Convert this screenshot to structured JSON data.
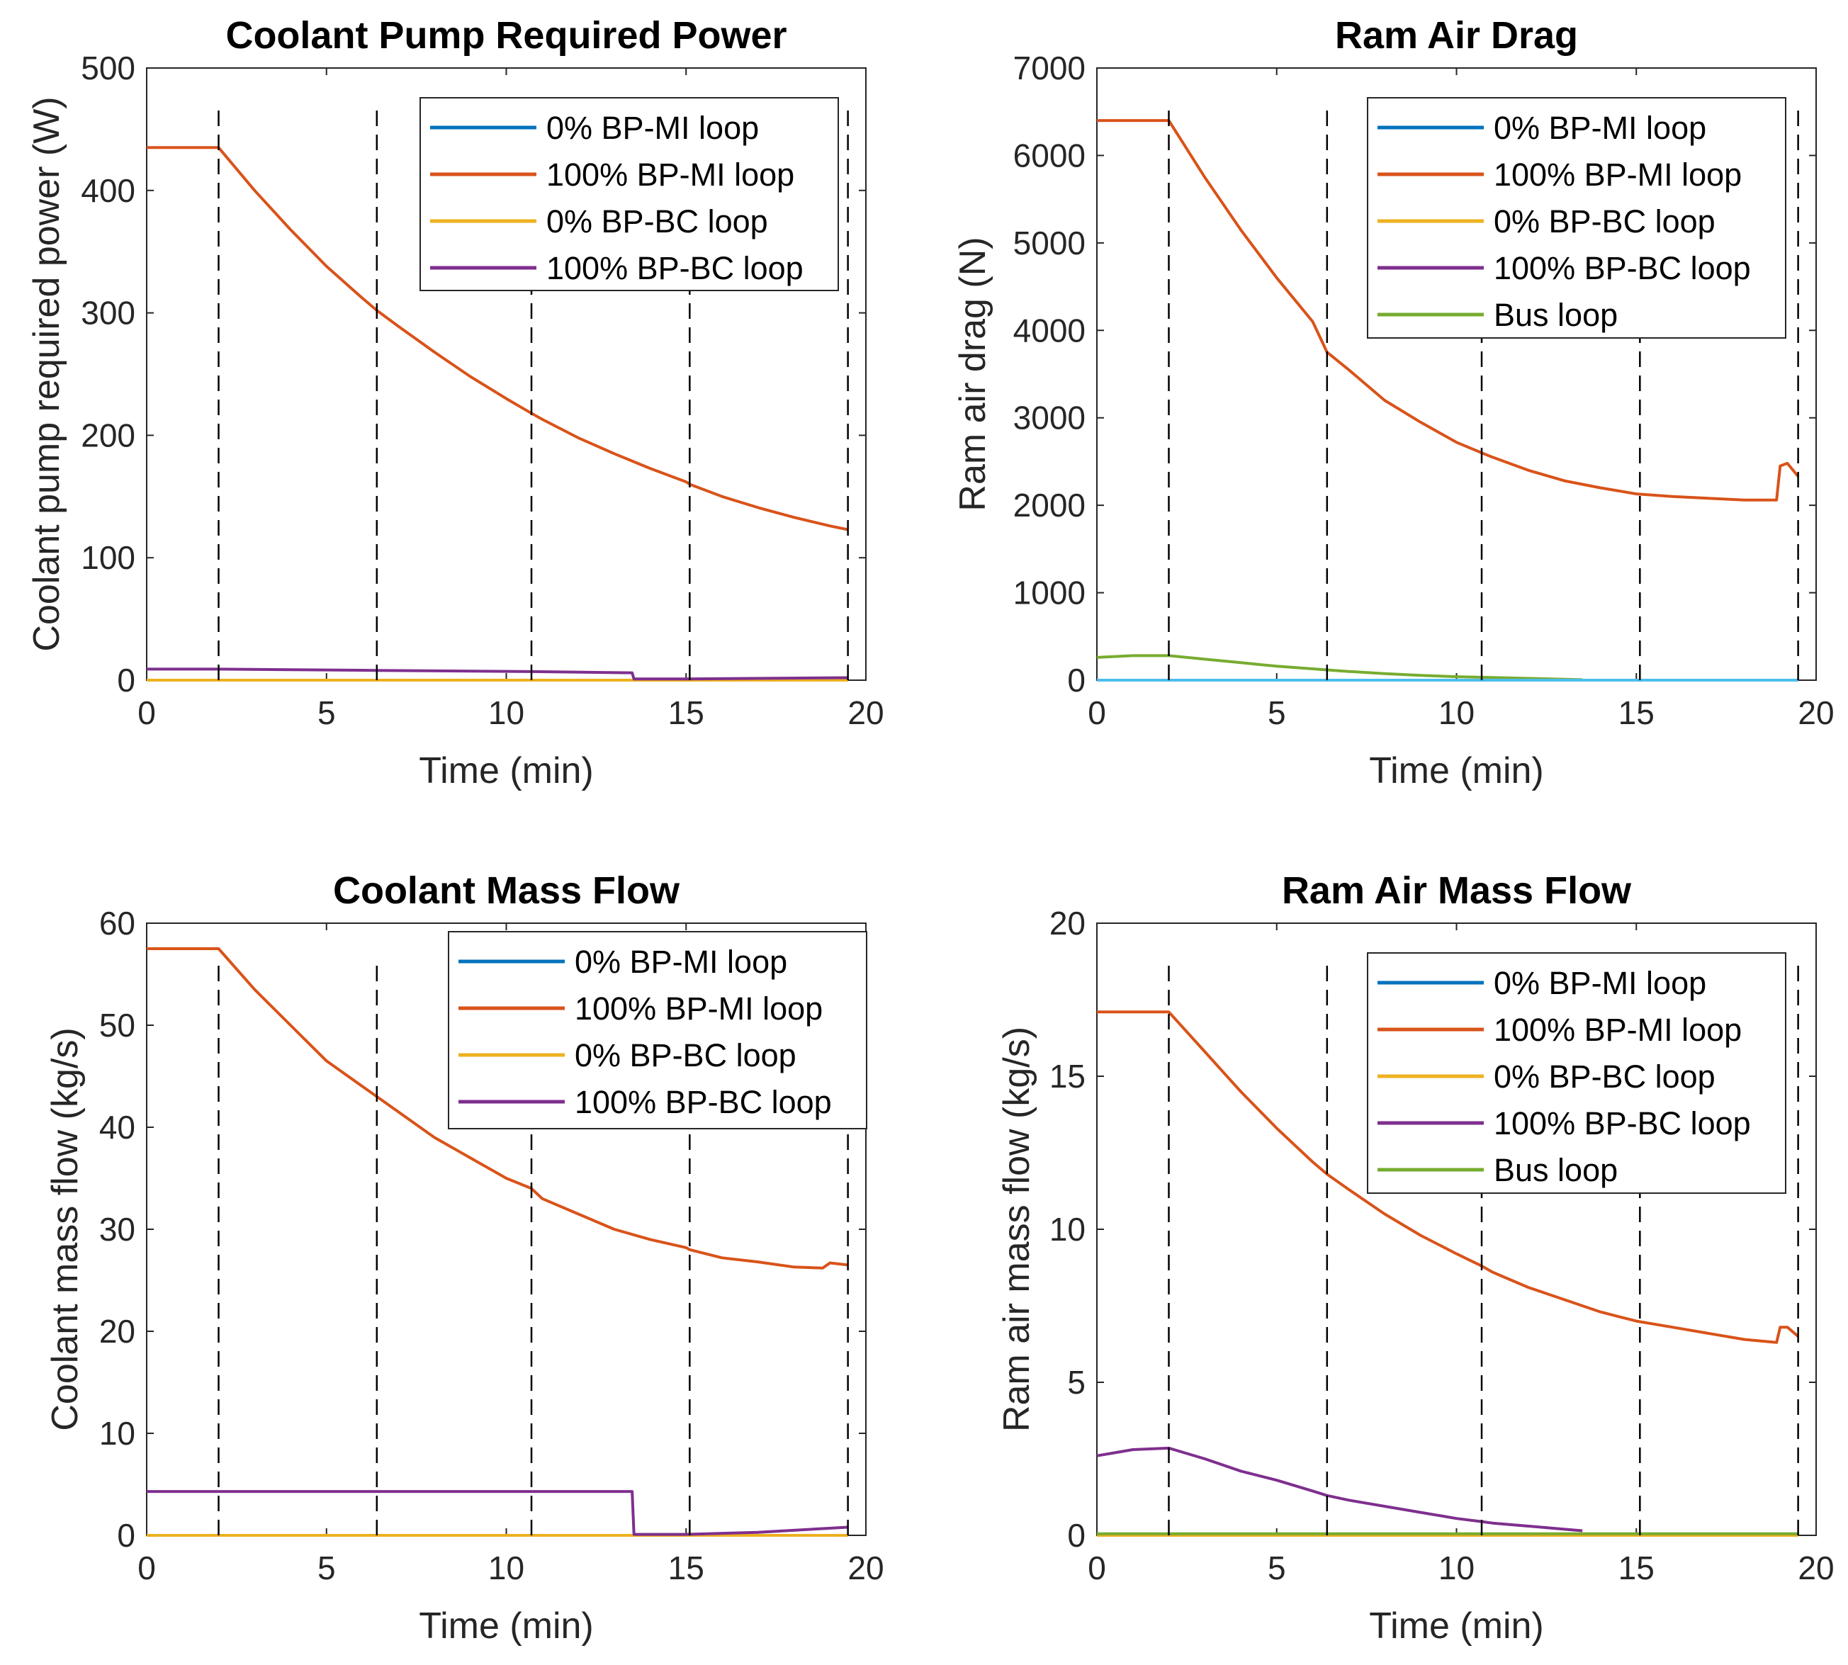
{
  "chart_data": [
    {
      "type": "line",
      "title": "Coolant Pump Required Power",
      "xlabel": "Time (min)",
      "ylabel": "Coolant pump required power (W)",
      "xlim": [
        0,
        20
      ],
      "ylim": [
        0,
        500
      ],
      "xticks": [
        0,
        5,
        10,
        15,
        20
      ],
      "yticks": [
        0,
        100,
        200,
        300,
        400,
        500
      ],
      "vlines": [
        2,
        6.4,
        10.7,
        15.1,
        19.5
      ],
      "legend_position": "top-right",
      "series": [
        {
          "name": "0% BP-MI loop",
          "color": "#0072BD",
          "in_legend": true,
          "x": [
            0,
            19.5
          ],
          "y": [
            0,
            0
          ]
        },
        {
          "name": "100% BP-MI loop",
          "color": "#D95319",
          "in_legend": true,
          "x": [
            0,
            2,
            3,
            4,
            5,
            6,
            6.4,
            7,
            8,
            9,
            10,
            10.7,
            11,
            12,
            13,
            14,
            15,
            15.1,
            16,
            17,
            18,
            19,
            19.5
          ],
          "y": [
            435,
            435,
            400,
            368,
            338,
            312,
            302,
            289,
            268,
            248,
            230,
            218,
            213,
            198,
            185,
            173,
            162,
            160,
            150,
            141,
            133,
            126,
            123
          ]
        },
        {
          "name": "0% BP-BC loop",
          "color": "#EDB120",
          "in_legend": true,
          "x": [
            0,
            19.5
          ],
          "y": [
            0,
            0
          ]
        },
        {
          "name": "100% BP-BC loop",
          "color": "#7E2F8E",
          "in_legend": true,
          "x": [
            0,
            2,
            6.4,
            10.7,
            13.5,
            13.55,
            15,
            19.5
          ],
          "y": [
            9,
            9,
            8,
            7,
            6,
            1,
            1,
            2
          ]
        }
      ]
    },
    {
      "type": "line",
      "title": "Ram Air Drag",
      "xlabel": "Time (min)",
      "ylabel": "Ram air drag (N)",
      "xlim": [
        0,
        20
      ],
      "ylim": [
        0,
        7000
      ],
      "xticks": [
        0,
        5,
        10,
        15,
        20
      ],
      "yticks": [
        0,
        1000,
        2000,
        3000,
        4000,
        5000,
        6000,
        7000
      ],
      "vlines": [
        2,
        6.4,
        10.7,
        15.1,
        19.5
      ],
      "legend_position": "top-right",
      "series": [
        {
          "name": "0% BP-MI loop",
          "color": "#0072BD",
          "in_legend": true,
          "x": [
            0,
            19.5
          ],
          "y": [
            0,
            0
          ]
        },
        {
          "name": "100% BP-MI loop",
          "color": "#D95319",
          "in_legend": true,
          "x": [
            0,
            2,
            3,
            4,
            5,
            6,
            6.4,
            7,
            8,
            9,
            10,
            10.7,
            11,
            12,
            13,
            14,
            15,
            16,
            17,
            18,
            18.9,
            19.0,
            19.2,
            19.5
          ],
          "y": [
            6400,
            6400,
            5750,
            5150,
            4600,
            4100,
            3750,
            3550,
            3200,
            2950,
            2720,
            2600,
            2550,
            2400,
            2280,
            2200,
            2130,
            2100,
            2080,
            2060,
            2060,
            2450,
            2480,
            2330
          ]
        },
        {
          "name": "0% BP-BC loop",
          "color": "#EDB120",
          "in_legend": true,
          "x": [
            0,
            19.5
          ],
          "y": [
            0,
            0
          ]
        },
        {
          "name": "100% BP-BC loop",
          "color": "#7E2F8E",
          "in_legend": true,
          "x": [
            0,
            19.5
          ],
          "y": [
            0,
            0
          ]
        },
        {
          "name": "Bus loop",
          "color": "#77AC30",
          "in_legend": true,
          "x": [
            0,
            1,
            2,
            3,
            4,
            5,
            6,
            7,
            8,
            9,
            10,
            11,
            12,
            13,
            13.5
          ],
          "y": [
            260,
            280,
            280,
            240,
            200,
            160,
            130,
            100,
            75,
            55,
            40,
            30,
            20,
            10,
            5
          ]
        },
        {
          "name": "",
          "color": "#4DBEEE",
          "in_legend": false,
          "x": [
            0,
            19.5
          ],
          "y": [
            0,
            0
          ]
        }
      ]
    },
    {
      "type": "line",
      "title": "Coolant Mass Flow",
      "xlabel": "Time (min)",
      "ylabel": "Coolant mass flow (kg/s)",
      "xlim": [
        0,
        20
      ],
      "ylim": [
        0,
        60
      ],
      "xticks": [
        0,
        5,
        10,
        15,
        20
      ],
      "yticks": [
        0,
        10,
        20,
        30,
        40,
        50,
        60
      ],
      "vlines": [
        2,
        6.4,
        10.7,
        15.1,
        19.5
      ],
      "legend_position": "top-right",
      "series": [
        {
          "name": "0% BP-MI loop",
          "color": "#0072BD",
          "in_legend": true,
          "x": [
            0,
            19.5
          ],
          "y": [
            0,
            0
          ]
        },
        {
          "name": "100% BP-MI loop",
          "color": "#D95319",
          "in_legend": true,
          "x": [
            0,
            2,
            3,
            4,
            5,
            6,
            6.4,
            7,
            8,
            9,
            10,
            10.7,
            11,
            12,
            13,
            14,
            15,
            15.1,
            16,
            17,
            18,
            18.8,
            19.0,
            19.5
          ],
          "y": [
            57.5,
            57.5,
            53.5,
            50,
            46.5,
            44,
            43,
            41.5,
            39,
            37,
            35,
            34,
            33,
            31.5,
            30,
            29,
            28.2,
            28,
            27.2,
            26.8,
            26.3,
            26.2,
            26.7,
            26.5
          ]
        },
        {
          "name": "0% BP-BC loop",
          "color": "#EDB120",
          "in_legend": true,
          "x": [
            0,
            19.5
          ],
          "y": [
            0,
            0
          ]
        },
        {
          "name": "100% BP-BC loop",
          "color": "#7E2F8E",
          "in_legend": true,
          "x": [
            0,
            13.5,
            13.55,
            15,
            17,
            19.5
          ],
          "y": [
            4.3,
            4.3,
            0.1,
            0.1,
            0.3,
            0.8
          ]
        }
      ]
    },
    {
      "type": "line",
      "title": "Ram Air Mass Flow",
      "xlabel": "Time (min)",
      "ylabel": "Ram air mass flow (kg/s)",
      "xlim": [
        0,
        20
      ],
      "ylim": [
        0,
        20
      ],
      "xticks": [
        0,
        5,
        10,
        15,
        20
      ],
      "yticks": [
        0,
        5,
        10,
        15,
        20
      ],
      "vlines": [
        2,
        6.4,
        10.7,
        15.1,
        19.5
      ],
      "legend_position": "top-right",
      "series": [
        {
          "name": "0% BP-MI loop",
          "color": "#0072BD",
          "in_legend": true,
          "x": [
            0,
            19.5
          ],
          "y": [
            0,
            0
          ]
        },
        {
          "name": "100% BP-MI loop",
          "color": "#D95319",
          "in_legend": true,
          "x": [
            0,
            2,
            3,
            4,
            5,
            6,
            6.4,
            7,
            8,
            9,
            10,
            10.7,
            11,
            12,
            13,
            14,
            15,
            16,
            17,
            18,
            18.9,
            19.0,
            19.2,
            19.5
          ],
          "y": [
            17.1,
            17.1,
            15.8,
            14.5,
            13.3,
            12.2,
            11.8,
            11.3,
            10.5,
            9.8,
            9.2,
            8.8,
            8.6,
            8.1,
            7.7,
            7.3,
            7.0,
            6.8,
            6.6,
            6.4,
            6.3,
            6.8,
            6.8,
            6.5
          ]
        },
        {
          "name": "0% BP-BC loop",
          "color": "#EDB120",
          "in_legend": true,
          "x": [
            0,
            19.5
          ],
          "y": [
            0,
            0
          ]
        },
        {
          "name": "100% BP-BC loop",
          "color": "#7E2F8E",
          "in_legend": true,
          "x": [
            0,
            0.5,
            1,
            2,
            3,
            4,
            5,
            6,
            6.4,
            7,
            8,
            9,
            10,
            10.7,
            11,
            12,
            13,
            13.5
          ],
          "y": [
            2.6,
            2.7,
            2.8,
            2.85,
            2.5,
            2.1,
            1.8,
            1.45,
            1.3,
            1.15,
            0.95,
            0.75,
            0.55,
            0.45,
            0.4,
            0.3,
            0.2,
            0.15
          ]
        },
        {
          "name": "Bus loop",
          "color": "#77AC30",
          "in_legend": true,
          "x": [
            0,
            19.5
          ],
          "y": [
            0.05,
            0.05
          ]
        }
      ]
    }
  ]
}
